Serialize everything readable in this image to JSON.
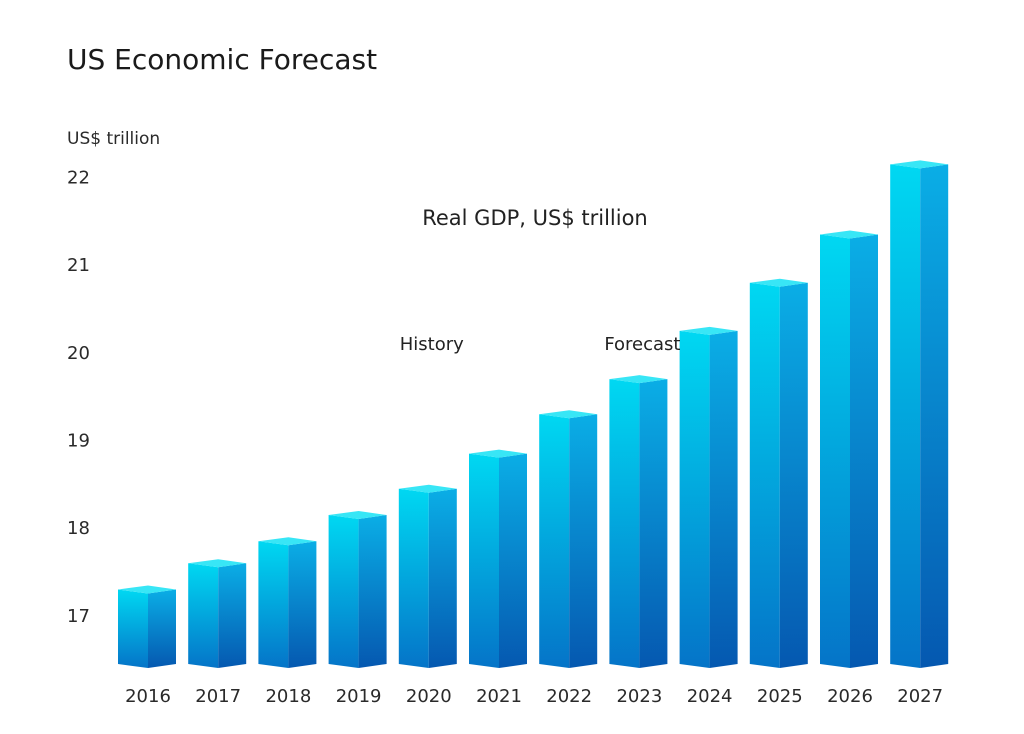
{
  "chart_data": {
    "type": "bar",
    "title": "US Economic Forecast",
    "subtitle": "Real GDP, US$ trillion",
    "ylabel": "US$ trillion",
    "xlabel": "",
    "categories": [
      "2016",
      "2017",
      "2018",
      "2019",
      "2020",
      "2021",
      "2022",
      "2023",
      "2024",
      "2025",
      "2026",
      "2027"
    ],
    "values": [
      17.3,
      17.6,
      17.85,
      18.15,
      18.45,
      18.85,
      19.3,
      19.7,
      20.25,
      20.8,
      21.35,
      22.15
    ],
    "yticks": [
      17,
      18,
      19,
      20,
      21,
      22
    ],
    "ylim": [
      16.45,
      22.2
    ],
    "annotations": [
      {
        "text": "History",
        "x": "2020",
        "y": 20.1
      },
      {
        "text": "Forecast",
        "x": "2023",
        "y": 20.1
      }
    ],
    "grid": false,
    "legend": "none",
    "colors": {
      "front_top": "#00d8f2",
      "front_bottom": "#0574c8",
      "side_top": "#0aaee6",
      "side_bottom": "#0558b0",
      "cap": "#38e6f6"
    }
  }
}
